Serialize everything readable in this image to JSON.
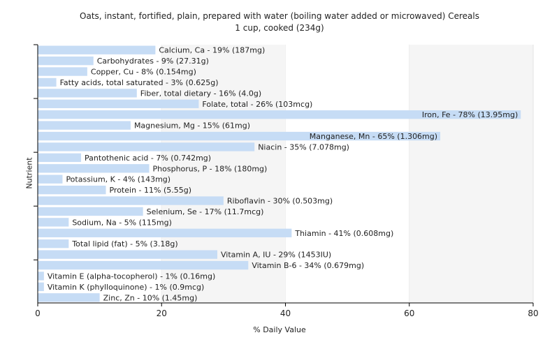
{
  "chart_data": {
    "type": "bar",
    "orientation": "horizontal",
    "title": "Oats, instant, fortified, plain, prepared with water (boiling water added or microwaved) Cereals",
    "subtitle": "1 cup, cooked (234g)",
    "xlabel": "% Daily Value",
    "ylabel": "Nutrient",
    "xlim": [
      0,
      80
    ],
    "xticks": [
      0,
      20,
      40,
      60,
      80
    ],
    "grid": true,
    "bar_color": "#c6dcf5",
    "categories": [
      "Calcium, Ca",
      "Carbohydrates",
      "Copper, Cu",
      "Fatty acids, total saturated",
      "Fiber, total dietary",
      "Folate, total",
      "Iron, Fe",
      "Magnesium, Mg",
      "Manganese, Mn",
      "Niacin",
      "Pantothenic acid",
      "Phosphorus, P",
      "Potassium, K",
      "Protein",
      "Riboflavin",
      "Selenium, Se",
      "Sodium, Na",
      "Thiamin",
      "Total lipid (fat)",
      "Vitamin A, IU",
      "Vitamin B-6",
      "Vitamin E (alpha-tocopherol)",
      "Vitamin K (phylloquinone)",
      "Zinc, Zn"
    ],
    "values": [
      19,
      9,
      8,
      3,
      16,
      26,
      78,
      15,
      65,
      35,
      7,
      18,
      4,
      11,
      30,
      17,
      5,
      41,
      5,
      29,
      34,
      1,
      1,
      10
    ],
    "labels": [
      "Calcium, Ca - 19% (187mg)",
      "Carbohydrates - 9% (27.31g)",
      "Copper, Cu - 8% (0.154mg)",
      "Fatty acids, total saturated - 3% (0.625g)",
      "Fiber, total dietary - 16% (4.0g)",
      "Folate, total - 26% (103mcg)",
      "Iron, Fe - 78% (13.95mg)",
      "Magnesium, Mg - 15% (61mg)",
      "Manganese, Mn - 65% (1.306mg)",
      "Niacin - 35% (7.078mg)",
      "Pantothenic acid - 7% (0.742mg)",
      "Phosphorus, P - 18% (180mg)",
      "Potassium, K - 4% (143mg)",
      "Protein - 11% (5.55g)",
      "Riboflavin - 30% (0.503mg)",
      "Selenium, Se - 17% (11.7mcg)",
      "Sodium, Na - 5% (115mg)",
      "Thiamin - 41% (0.608mg)",
      "Total lipid (fat) - 5% (3.18g)",
      "Vitamin A, IU - 29% (1453IU)",
      "Vitamin B-6 - 34% (0.679mg)",
      "Vitamin E (alpha-tocopherol) - 1% (0.16mg)",
      "Vitamin K (phylloquinone) - 1% (0.9mcg)",
      "Zinc, Zn - 10% (1.45mg)"
    ]
  }
}
